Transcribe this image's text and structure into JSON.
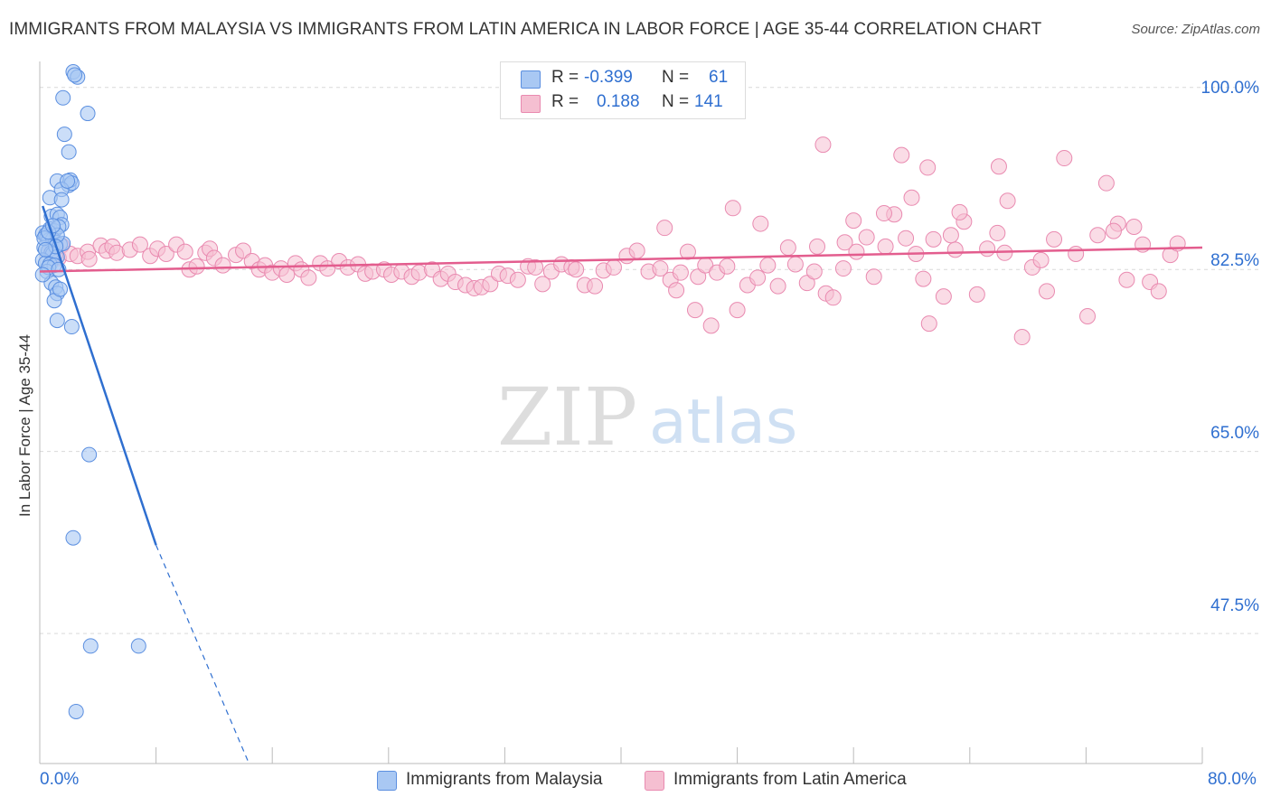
{
  "header": {
    "title": "IMMIGRANTS FROM MALAYSIA VS IMMIGRANTS FROM LATIN AMERICA IN LABOR FORCE | AGE 35-44 CORRELATION CHART",
    "source": "Source: ZipAtlas.com"
  },
  "watermark": {
    "zip": "ZIP",
    "atlas": "atlas"
  },
  "stats": {
    "malaysia": {
      "r_label": "R =",
      "r_value": "-0.399",
      "n_label": "N =",
      "n_value": "61"
    },
    "latin": {
      "r_label": "R =",
      "r_value": "0.188",
      "n_label": "N =",
      "n_value": "141"
    }
  },
  "legend": {
    "malaysia": "Immigrants from Malaysia",
    "latin": "Immigrants from Latin America"
  },
  "colors": {
    "blue_fill": "#a9c8f3",
    "blue_stroke": "#5b8fe0",
    "blue_line": "#2f6fd0",
    "pink_fill": "#f5bfd1",
    "pink_stroke": "#e98ab0",
    "pink_line": "#e35d8e",
    "axis_label": "#2f6fd0",
    "grid": "#d9d9d9"
  },
  "chart_data": {
    "type": "scatter",
    "title": "IMMIGRANTS FROM MALAYSIA VS IMMIGRANTS FROM LATIN AMERICA IN LABOR FORCE | AGE 35-44 CORRELATION CHART",
    "xlabel": "",
    "ylabel": "In Labor Force | Age 35-44",
    "xlim": [
      0,
      80
    ],
    "ylim": [
      35,
      102.5
    ],
    "x_tick_labels": [
      "0.0%",
      "80.0%"
    ],
    "y_ticks": [
      47.5,
      65.0,
      82.5,
      100.0
    ],
    "y_tick_labels": [
      "47.5%",
      "65.0%",
      "82.5%",
      "100.0%"
    ],
    "series": [
      {
        "name": "Immigrants from Malaysia",
        "color": "blue",
        "R": -0.399,
        "N": 61,
        "trend": {
          "x0": 0.2,
          "y0": 88.6,
          "x1": 8.0,
          "y1": 56.0,
          "dash_x1": 14.4,
          "dash_y1": 35.0
        },
        "points": [
          [
            2.3,
            101.5
          ],
          [
            2.6,
            101.0
          ],
          [
            2.4,
            101.2
          ],
          [
            1.6,
            99.0
          ],
          [
            3.3,
            97.5
          ],
          [
            1.7,
            95.5
          ],
          [
            2.0,
            93.8
          ],
          [
            1.2,
            91.0
          ],
          [
            2.0,
            90.6
          ],
          [
            2.1,
            91.1
          ],
          [
            2.2,
            90.8
          ],
          [
            1.5,
            90.2
          ],
          [
            0.7,
            89.4
          ],
          [
            1.5,
            89.2
          ],
          [
            0.8,
            87.6
          ],
          [
            1.2,
            87.8
          ],
          [
            1.4,
            87.5
          ],
          [
            1.5,
            86.8
          ],
          [
            0.7,
            86.4
          ],
          [
            1.0,
            86.2
          ],
          [
            1.3,
            86.6
          ],
          [
            0.2,
            86.0
          ],
          [
            0.4,
            85.8
          ],
          [
            0.5,
            85.6
          ],
          [
            0.6,
            85.3
          ],
          [
            0.9,
            85.4
          ],
          [
            1.1,
            85.1
          ],
          [
            1.4,
            84.9
          ],
          [
            0.3,
            84.6
          ],
          [
            0.6,
            84.3
          ],
          [
            0.8,
            84.1
          ],
          [
            0.9,
            84.0
          ],
          [
            1.2,
            83.7
          ],
          [
            0.2,
            83.4
          ],
          [
            0.4,
            83.1
          ],
          [
            0.7,
            83.0
          ],
          [
            1.0,
            82.9
          ],
          [
            0.5,
            82.3
          ],
          [
            0.6,
            82.7
          ],
          [
            0.8,
            81.2
          ],
          [
            1.1,
            80.8
          ],
          [
            1.2,
            80.2
          ],
          [
            1.0,
            79.5
          ],
          [
            1.4,
            80.6
          ],
          [
            1.6,
            85.0
          ],
          [
            1.2,
            85.8
          ],
          [
            0.3,
            85.5
          ],
          [
            0.6,
            86.1
          ],
          [
            0.9,
            86.7
          ],
          [
            0.2,
            82.0
          ],
          [
            1.1,
            84.7
          ],
          [
            1.3,
            82.5
          ],
          [
            0.4,
            84.4
          ],
          [
            1.2,
            77.6
          ],
          [
            2.2,
            77.0
          ],
          [
            3.4,
            64.7
          ],
          [
            2.3,
            56.7
          ],
          [
            3.5,
            46.3
          ],
          [
            6.8,
            46.3
          ],
          [
            2.5,
            40.0
          ],
          [
            1.9,
            91.0
          ]
        ]
      },
      {
        "name": "Immigrants from Latin America",
        "color": "pink",
        "R": 0.188,
        "N": 141,
        "trend": {
          "x0": 0,
          "y0": 82.3,
          "x1": 80,
          "y1": 84.6
        },
        "points": [
          [
            0.8,
            84.4
          ],
          [
            1.1,
            84.0
          ],
          [
            1.3,
            83.6
          ],
          [
            1.5,
            84.8
          ],
          [
            2.1,
            84.0
          ],
          [
            2.6,
            83.8
          ],
          [
            3.3,
            84.2
          ],
          [
            3.4,
            83.5
          ],
          [
            4.2,
            84.8
          ],
          [
            4.6,
            84.3
          ],
          [
            5.0,
            84.7
          ],
          [
            5.3,
            84.1
          ],
          [
            6.2,
            84.4
          ],
          [
            6.9,
            84.9
          ],
          [
            7.6,
            83.8
          ],
          [
            8.1,
            84.5
          ],
          [
            8.7,
            84.0
          ],
          [
            9.4,
            84.9
          ],
          [
            10.0,
            84.2
          ],
          [
            10.3,
            82.5
          ],
          [
            10.8,
            82.8
          ],
          [
            11.4,
            84.1
          ],
          [
            11.7,
            84.5
          ],
          [
            12.0,
            83.6
          ],
          [
            12.6,
            82.9
          ],
          [
            13.5,
            83.9
          ],
          [
            14.0,
            84.3
          ],
          [
            14.6,
            83.3
          ],
          [
            15.1,
            82.5
          ],
          [
            15.5,
            82.9
          ],
          [
            16.0,
            82.2
          ],
          [
            16.6,
            82.6
          ],
          [
            17.0,
            82.0
          ],
          [
            17.6,
            83.1
          ],
          [
            18.0,
            82.5
          ],
          [
            18.5,
            81.7
          ],
          [
            19.3,
            83.1
          ],
          [
            19.8,
            82.6
          ],
          [
            20.6,
            83.3
          ],
          [
            21.2,
            82.7
          ],
          [
            21.9,
            83.0
          ],
          [
            22.4,
            82.1
          ],
          [
            22.9,
            82.3
          ],
          [
            23.7,
            82.5
          ],
          [
            24.2,
            82.0
          ],
          [
            24.9,
            82.3
          ],
          [
            25.6,
            81.8
          ],
          [
            26.1,
            82.2
          ],
          [
            27.0,
            82.5
          ],
          [
            27.6,
            81.6
          ],
          [
            28.1,
            82.1
          ],
          [
            28.6,
            81.3
          ],
          [
            29.3,
            81.0
          ],
          [
            29.9,
            80.7
          ],
          [
            30.4,
            80.8
          ],
          [
            31.0,
            81.1
          ],
          [
            31.6,
            82.1
          ],
          [
            32.2,
            81.9
          ],
          [
            32.9,
            81.5
          ],
          [
            33.6,
            82.8
          ],
          [
            34.1,
            82.7
          ],
          [
            34.6,
            81.1
          ],
          [
            35.2,
            82.3
          ],
          [
            35.9,
            83.0
          ],
          [
            36.6,
            82.7
          ],
          [
            36.9,
            82.5
          ],
          [
            37.5,
            81.0
          ],
          [
            38.2,
            80.9
          ],
          [
            38.8,
            82.4
          ],
          [
            39.5,
            82.7
          ],
          [
            40.4,
            83.8
          ],
          [
            41.1,
            84.3
          ],
          [
            41.9,
            82.3
          ],
          [
            42.7,
            82.6
          ],
          [
            43.4,
            81.5
          ],
          [
            44.1,
            82.2
          ],
          [
            44.6,
            84.2
          ],
          [
            45.3,
            81.8
          ],
          [
            45.8,
            82.9
          ],
          [
            46.6,
            82.2
          ],
          [
            47.3,
            82.8
          ],
          [
            48.0,
            78.6
          ],
          [
            48.7,
            81.0
          ],
          [
            49.4,
            81.7
          ],
          [
            50.1,
            82.9
          ],
          [
            50.8,
            80.9
          ],
          [
            51.5,
            84.6
          ],
          [
            52.0,
            83.0
          ],
          [
            52.8,
            81.2
          ],
          [
            53.3,
            82.3
          ],
          [
            54.1,
            80.2
          ],
          [
            54.6,
            79.8
          ],
          [
            55.3,
            82.6
          ],
          [
            56.2,
            84.2
          ],
          [
            56.9,
            85.6
          ],
          [
            57.4,
            81.8
          ],
          [
            58.2,
            84.7
          ],
          [
            58.8,
            87.8
          ],
          [
            59.6,
            85.5
          ],
          [
            60.3,
            84.0
          ],
          [
            60.8,
            81.6
          ],
          [
            61.5,
            85.4
          ],
          [
            62.2,
            79.9
          ],
          [
            63.0,
            84.4
          ],
          [
            63.6,
            87.1
          ],
          [
            64.5,
            80.1
          ],
          [
            65.2,
            84.5
          ],
          [
            65.9,
            86.0
          ],
          [
            66.4,
            84.1
          ],
          [
            67.6,
            76.0
          ],
          [
            68.3,
            82.7
          ],
          [
            69.3,
            80.4
          ],
          [
            69.8,
            85.4
          ],
          [
            70.5,
            93.2
          ],
          [
            71.3,
            84.0
          ],
          [
            72.1,
            78.0
          ],
          [
            72.8,
            85.8
          ],
          [
            73.4,
            90.8
          ],
          [
            74.2,
            86.9
          ],
          [
            74.8,
            81.5
          ],
          [
            75.3,
            86.6
          ],
          [
            75.9,
            84.9
          ],
          [
            76.4,
            81.3
          ],
          [
            77.0,
            80.4
          ],
          [
            77.8,
            83.9
          ],
          [
            78.3,
            85.0
          ],
          [
            73.9,
            86.2
          ],
          [
            66.6,
            89.1
          ],
          [
            66.0,
            92.4
          ],
          [
            61.1,
            92.3
          ],
          [
            59.3,
            93.5
          ],
          [
            53.9,
            94.5
          ],
          [
            60.0,
            89.4
          ],
          [
            63.3,
            88.0
          ],
          [
            47.7,
            88.4
          ],
          [
            49.6,
            86.9
          ],
          [
            56.0,
            87.2
          ],
          [
            43.0,
            86.5
          ],
          [
            55.4,
            85.1
          ],
          [
            61.2,
            77.3
          ],
          [
            58.1,
            87.9
          ],
          [
            43.8,
            80.5
          ],
          [
            45.1,
            78.6
          ],
          [
            46.2,
            77.1
          ],
          [
            53.5,
            84.7
          ],
          [
            62.7,
            85.8
          ],
          [
            68.9,
            83.4
          ]
        ]
      }
    ]
  }
}
